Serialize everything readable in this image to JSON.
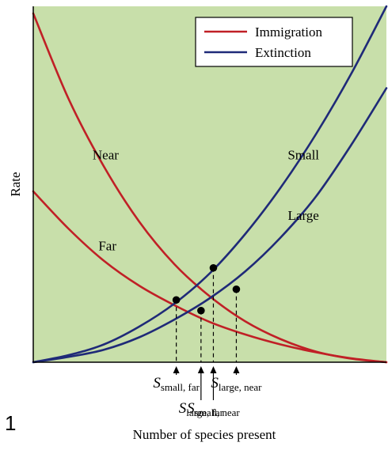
{
  "figure_number": "1",
  "chart_data": {
    "type": "line",
    "title": "",
    "xlabel": "Number of species present",
    "ylabel": "Rate",
    "xlim": [
      0,
      100
    ],
    "ylim": [
      0,
      100
    ],
    "grid": false,
    "legend_placement": "top-right",
    "background_color": "#c8dfaa",
    "legend": [
      {
        "label": "Immigration",
        "color": "#c02026"
      },
      {
        "label": "Extinction",
        "color": "#1f2a78"
      }
    ],
    "series": [
      {
        "name": "Near",
        "kind": "immigration",
        "color": "#c02026",
        "x": [
          0,
          10,
          20,
          30,
          40,
          50,
          60,
          70,
          80,
          90,
          100
        ],
        "y": [
          98,
          74,
          55,
          39.5,
          27.5,
          18.5,
          11.5,
          6.5,
          3,
          1,
          0
        ]
      },
      {
        "name": "Far",
        "kind": "immigration",
        "color": "#c02026",
        "x": [
          0,
          10,
          20,
          30,
          40,
          50,
          60,
          70,
          80,
          90,
          100
        ],
        "y": [
          48,
          37.5,
          28.5,
          21.5,
          16,
          11.3,
          7.8,
          5,
          2.8,
          1.1,
          0
        ]
      },
      {
        "name": "Small",
        "kind": "extinction",
        "color": "#1f2a78",
        "x": [
          0,
          10,
          20,
          30,
          40,
          50,
          60,
          70,
          80,
          90,
          100
        ],
        "y": [
          0,
          2,
          5,
          10,
          16.5,
          25,
          36,
          49,
          64,
          81,
          100
        ]
      },
      {
        "name": "Large",
        "kind": "extinction",
        "color": "#1f2a78",
        "x": [
          0,
          10,
          20,
          30,
          40,
          50,
          60,
          70,
          80,
          90,
          100
        ],
        "y": [
          0,
          1.5,
          3.5,
          7,
          12,
          18,
          25.5,
          35,
          46.5,
          61,
          77
        ]
      }
    ],
    "curve_labels": [
      {
        "text": "Near",
        "x": 20.5,
        "y": 57
      },
      {
        "text": "Far",
        "x": 21,
        "y": 31.5
      },
      {
        "text": "Small",
        "x": 76.5,
        "y": 57
      },
      {
        "text": "Large",
        "x": 76.5,
        "y": 40
      }
    ],
    "equilibria": [
      {
        "x": 40.5,
        "y": 17.5,
        "label_main": "S",
        "label_sub": "small, far",
        "label_row": 1
      },
      {
        "x": 47.5,
        "y": 14.5,
        "label_main": "S",
        "label_sub": "large, far",
        "label_row": 2
      },
      {
        "x": 51,
        "y": 26.5,
        "label_main": "S",
        "label_sub": "small, near",
        "label_row": 2
      },
      {
        "x": 57.5,
        "y": 20.5,
        "label_main": "S",
        "label_sub": "large, near",
        "label_row": 1
      }
    ]
  }
}
